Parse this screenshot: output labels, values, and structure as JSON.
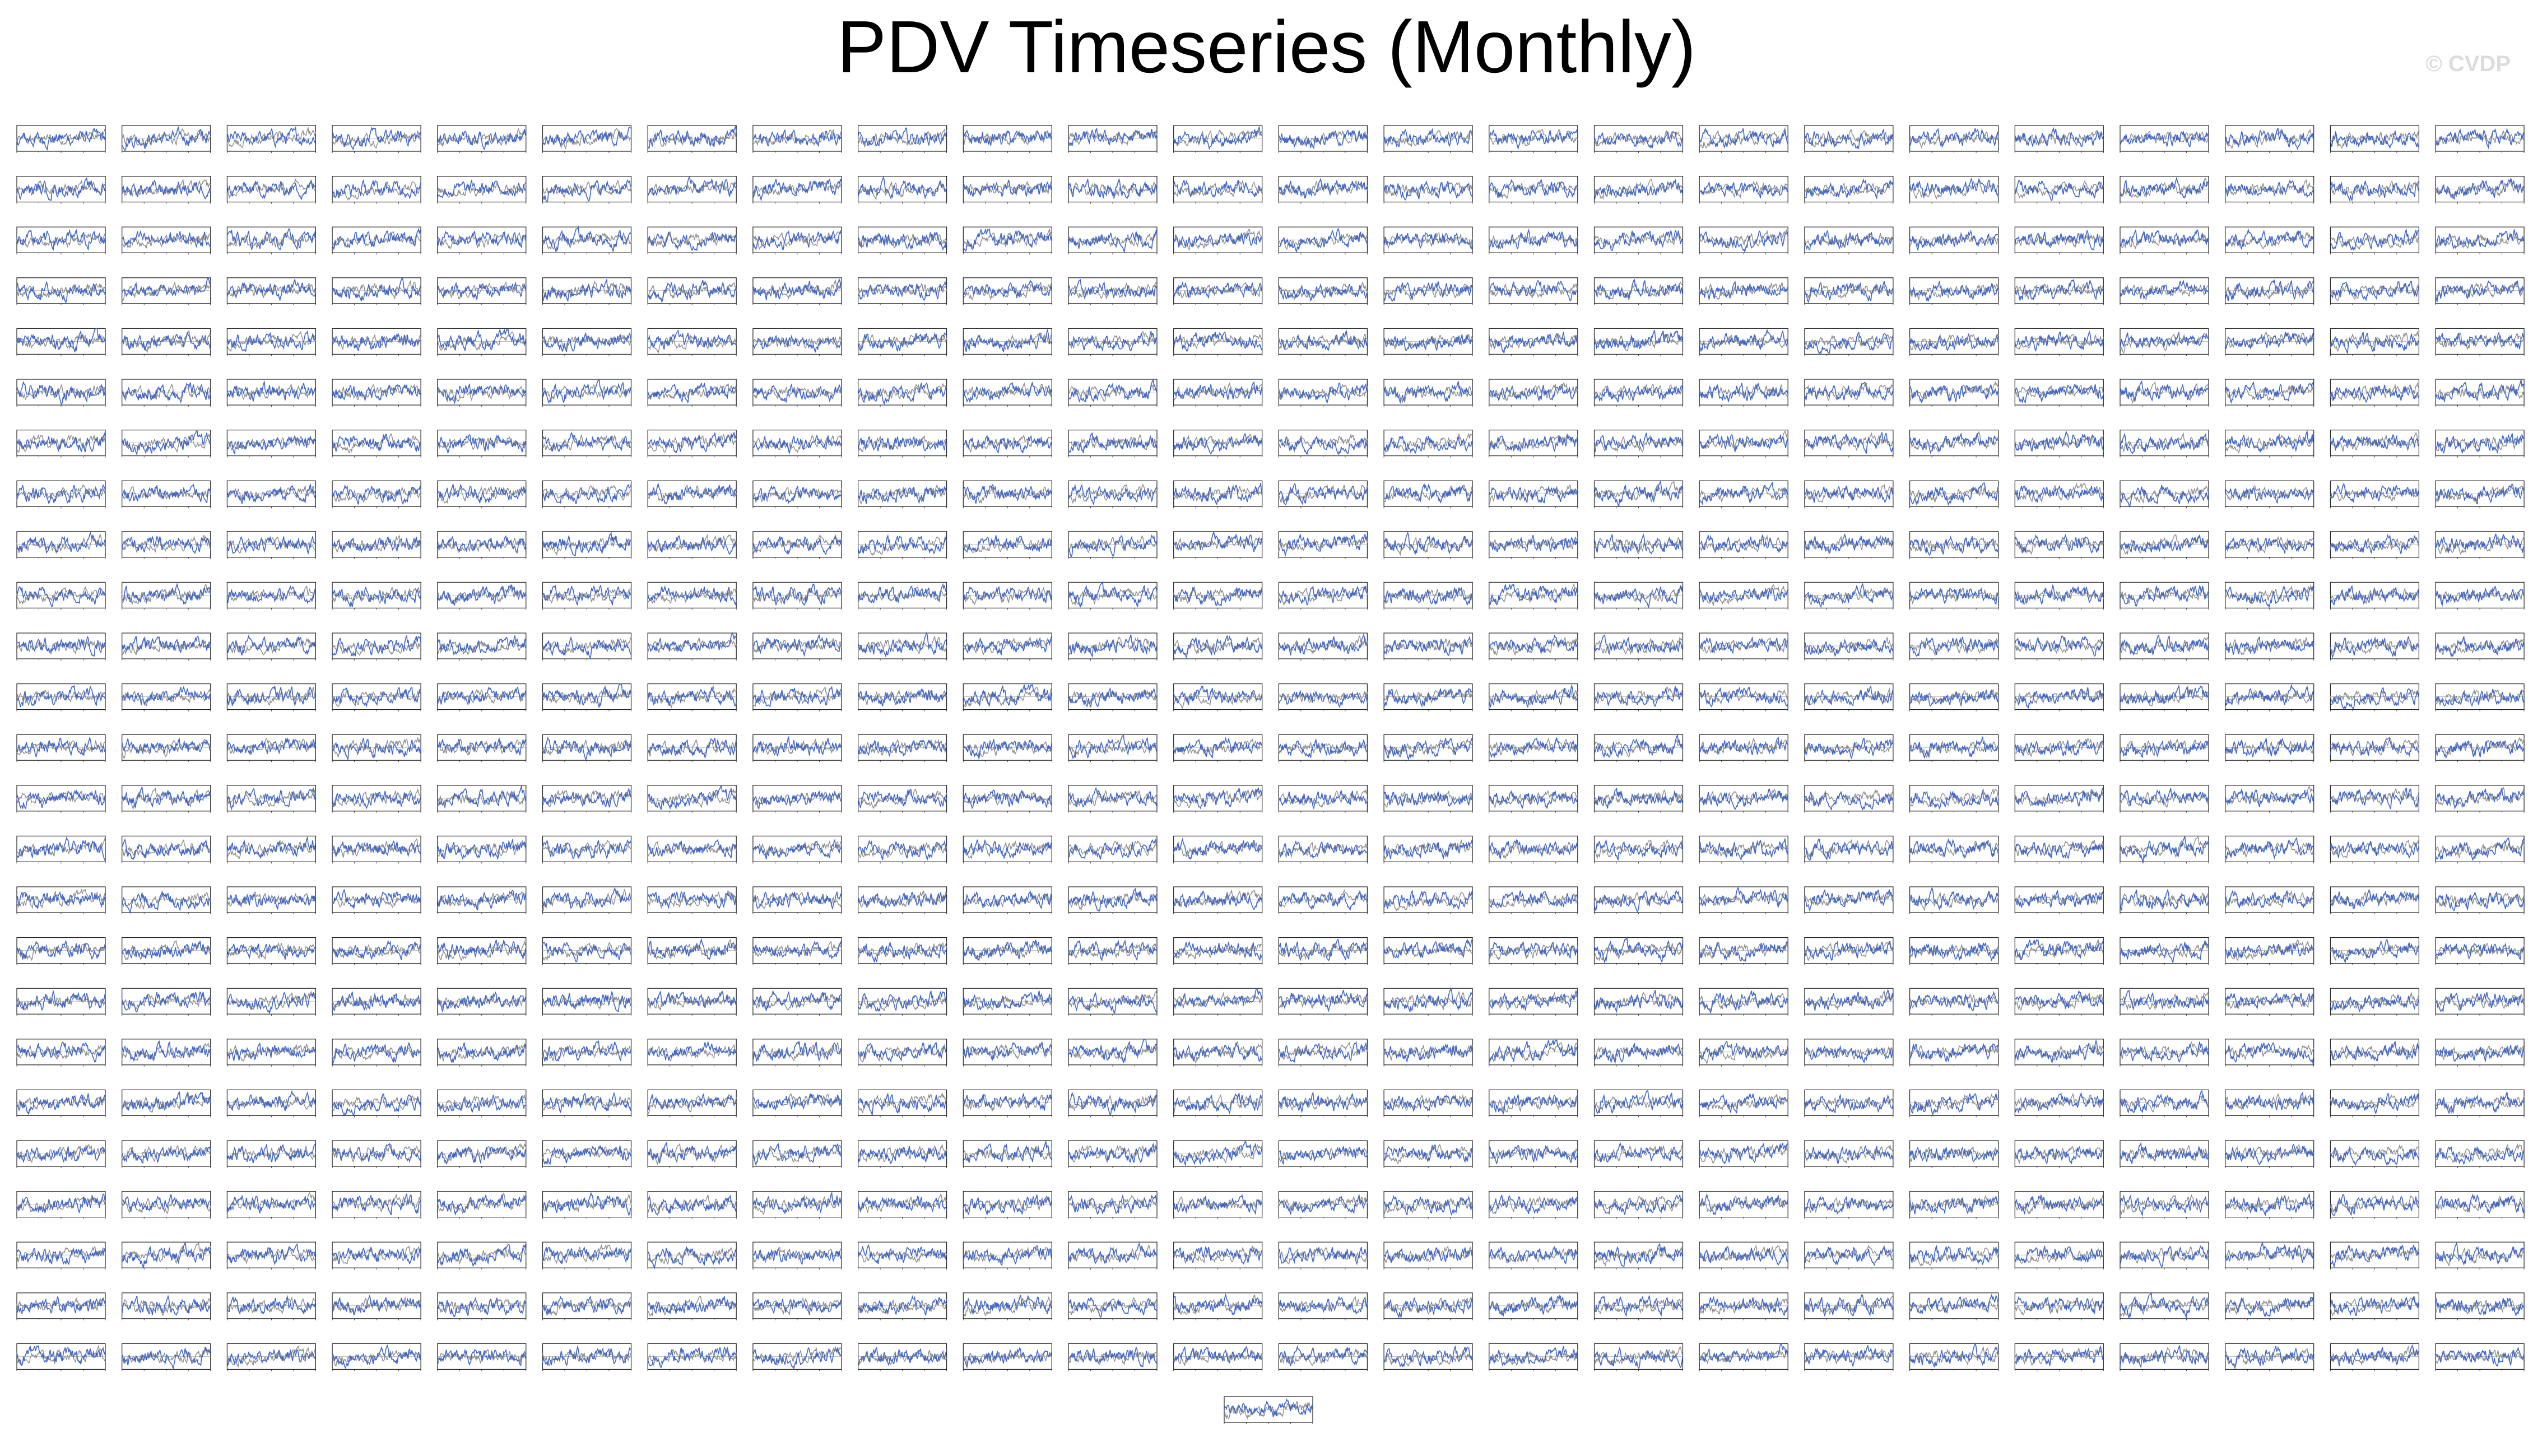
{
  "title": "PDV Timeseries (Monthly)",
  "watermark": "© CVDP",
  "colors": {
    "ensemble_member": "#3f66c9",
    "observations": "#8c8c8c",
    "panel_border": "#222222",
    "zero_line": "#999999"
  },
  "chart_data": {
    "type": "line",
    "title": "PDV Timeseries (Monthly)",
    "layout": {
      "rows": 25,
      "cols": 24,
      "extra_panels": 1
    },
    "panel_count": 601,
    "ylim": [
      -3,
      3
    ],
    "grid": false,
    "legend": "none",
    "series": [
      {
        "name": "",
        "color": "#3f66c9"
      },
      {
        "name": "",
        "color": "#8c8c8c"
      }
    ]
  }
}
